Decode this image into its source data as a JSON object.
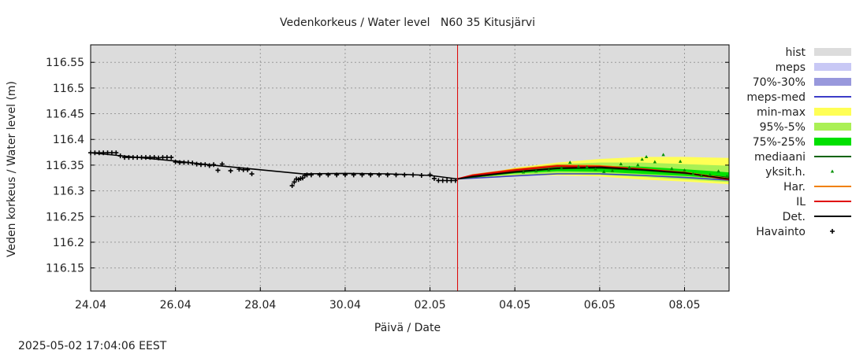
{
  "chart_data": {
    "type": "line",
    "title": "Vedenkorkeus / Water level   N60 35 Kitusjärvi",
    "xlabel": "Päivä / Date",
    "ylabel": "Veden korkeus / Water level (m)",
    "timestamp": "2025-05-02 17:04:06 EEST",
    "x_ticks": [
      {
        "label": "24.04",
        "day": 0
      },
      {
        "label": "26.04",
        "day": 2
      },
      {
        "label": "28.04",
        "day": 4
      },
      {
        "label": "30.04",
        "day": 6
      },
      {
        "label": "02.05",
        "day": 8
      },
      {
        "label": "04.05",
        "day": 10
      },
      {
        "label": "06.05",
        "day": 12
      },
      {
        "label": "08.05",
        "day": 14
      }
    ],
    "xlim_days": [
      0,
      15.05
    ],
    "ylim": [
      116.105,
      116.584
    ],
    "y_ticks": [
      116.15,
      116.2,
      116.25,
      116.3,
      116.35,
      116.4,
      116.45,
      116.5,
      116.55
    ],
    "y_tick_labels": [
      "116.15",
      "116.2",
      "116.25",
      "116.3",
      "116.35",
      "116.4",
      "116.45",
      "116.5",
      "116.55"
    ],
    "now_day": 8.65,
    "now_color": "#dd0000",
    "legend": [
      {
        "label": "hist",
        "kind": "band",
        "color": "#dcdcdc"
      },
      {
        "label": "meps",
        "kind": "band",
        "color": "#c8c8f5"
      },
      {
        "label": "70%-30%",
        "kind": "band",
        "color": "#9898dc"
      },
      {
        "label": "meps-med",
        "kind": "line",
        "color": "#3c3cc8"
      },
      {
        "label": "min-max",
        "kind": "band",
        "color": "#ffff55"
      },
      {
        "label": "95%-5%",
        "kind": "band",
        "color": "#aaf055"
      },
      {
        "label": "75%-25%",
        "kind": "band",
        "color": "#00e000"
      },
      {
        "label": "mediaani",
        "kind": "line",
        "color": "#006400"
      },
      {
        "label": "yksit.h.",
        "kind": "dot",
        "color": "#009000"
      },
      {
        "label": "Har.",
        "kind": "line",
        "color": "#f08000"
      },
      {
        "label": "IL",
        "kind": "line",
        "color": "#e00000"
      },
      {
        "label": "Det.",
        "kind": "line",
        "color": "#000000"
      },
      {
        "label": "Havainto",
        "kind": "cross",
        "color": "#000000"
      }
    ],
    "series": [
      {
        "name": "Det.",
        "color": "#000000",
        "x": [
          0,
          1,
          2,
          3,
          4,
          5,
          6,
          7,
          8,
          8.65,
          9,
          10,
          11,
          12,
          13,
          14,
          15.05
        ],
        "y": [
          116.374,
          116.366,
          116.358,
          116.349,
          116.341,
          116.333,
          116.334,
          116.333,
          116.33,
          116.323,
          116.328,
          116.337,
          116.344,
          116.346,
          116.341,
          116.335,
          116.323
        ]
      },
      {
        "name": "IL",
        "color": "#e00000",
        "x": [
          8.65,
          9,
          10,
          11,
          12,
          13,
          14,
          15.05
        ],
        "y": [
          116.323,
          116.33,
          116.34,
          116.348,
          116.347,
          116.342,
          116.335,
          116.322
        ]
      },
      {
        "name": "Har.",
        "color": "#f08000",
        "x": [
          8.65,
          9,
          10,
          11,
          12,
          13,
          14,
          15.05
        ],
        "y": [
          116.323,
          116.331,
          116.342,
          116.35,
          116.349,
          116.343,
          116.336,
          116.324
        ]
      },
      {
        "name": "mediaani",
        "color": "#006400",
        "x": [
          8.65,
          10,
          11,
          12,
          13,
          14,
          15.05
        ],
        "y": [
          116.323,
          116.336,
          116.343,
          116.344,
          116.34,
          116.334,
          116.326
        ]
      },
      {
        "name": "meps-med",
        "color": "#3c3cc8",
        "x": [
          8.65,
          10,
          11,
          12,
          13,
          14,
          15.05
        ],
        "y": [
          116.323,
          116.329,
          116.333,
          116.333,
          116.33,
          116.326,
          116.321
        ]
      }
    ],
    "bands": [
      {
        "name": "min-max",
        "color": "#ffff55",
        "x": [
          8.65,
          10,
          11,
          12,
          13,
          14,
          15.05
        ],
        "lower": [
          116.323,
          116.33,
          116.33,
          116.328,
          116.322,
          116.318,
          116.313
        ],
        "upper": [
          116.323,
          116.345,
          116.355,
          116.362,
          116.366,
          116.366,
          116.364
        ]
      },
      {
        "name": "95%-5%",
        "color": "#aaf055",
        "x": [
          8.65,
          10,
          11,
          12,
          13,
          14,
          15.05
        ],
        "lower": [
          116.323,
          116.331,
          116.333,
          116.331,
          116.327,
          116.322,
          116.317
        ],
        "upper": [
          116.323,
          116.343,
          116.352,
          116.355,
          116.355,
          116.352,
          116.349
        ]
      },
      {
        "name": "75%-25%",
        "color": "#00e000",
        "x": [
          8.65,
          10,
          11,
          12,
          13,
          14,
          15.05
        ],
        "lower": [
          116.323,
          116.334,
          116.338,
          116.337,
          116.333,
          116.329,
          116.323
        ],
        "upper": [
          116.323,
          116.34,
          116.348,
          116.349,
          116.347,
          116.342,
          116.336
        ]
      }
    ],
    "yksit": {
      "color": "#009000",
      "x": [
        10.2,
        10.5,
        10.8,
        11.1,
        11.3,
        11.5,
        11.7,
        11.9,
        12.1,
        12.3,
        12.5,
        12.7,
        12.9,
        13.0,
        13.1,
        13.3,
        13.5,
        13.7,
        13.9,
        14.0,
        14.2,
        14.4,
        14.6,
        14.8,
        15.0
      ],
      "y": [
        116.336,
        116.338,
        116.34,
        116.344,
        116.355,
        116.347,
        116.346,
        116.342,
        116.337,
        116.339,
        116.352,
        116.345,
        116.35,
        116.361,
        116.366,
        116.356,
        116.37,
        116.343,
        116.357,
        116.34,
        116.333,
        116.329,
        116.331,
        116.338,
        116.328
      ]
    },
    "havainto": {
      "x": [
        0,
        0.1,
        0.2,
        0.3,
        0.4,
        0.5,
        0.6,
        0.7,
        0.8,
        0.9,
        1.0,
        1.1,
        1.2,
        1.3,
        1.4,
        1.5,
        1.6,
        1.7,
        1.8,
        1.9,
        2.0,
        2.1,
        2.2,
        2.3,
        2.4,
        2.5,
        2.6,
        2.7,
        2.8,
        2.9,
        3.0,
        3.1,
        3.3,
        3.5,
        3.6,
        3.7,
        3.8,
        4.75,
        4.8,
        4.85,
        4.9,
        4.95,
        5.0,
        5.05,
        5.1,
        5.2,
        5.4,
        5.6,
        5.8,
        6.0,
        6.2,
        6.4,
        6.6,
        6.8,
        7.0,
        7.2,
        7.4,
        7.6,
        7.8,
        8.0,
        8.1,
        8.2,
        8.3,
        8.4,
        8.5,
        8.6
      ],
      "y": [
        116.374,
        116.374,
        116.374,
        116.374,
        116.374,
        116.374,
        116.374,
        116.368,
        116.365,
        116.365,
        116.365,
        116.365,
        116.365,
        116.365,
        116.365,
        116.365,
        116.364,
        116.365,
        116.365,
        116.365,
        116.356,
        116.355,
        116.355,
        116.355,
        116.354,
        116.352,
        116.351,
        116.351,
        116.349,
        116.351,
        116.34,
        116.352,
        116.339,
        116.342,
        116.341,
        116.341,
        116.333,
        116.31,
        116.317,
        116.323,
        116.322,
        116.324,
        116.325,
        116.33,
        116.331,
        116.331,
        116.331,
        116.331,
        116.331,
        116.331,
        116.331,
        116.331,
        116.331,
        116.331,
        116.331,
        116.331,
        116.331,
        116.331,
        116.33,
        116.331,
        116.324,
        116.32,
        116.32,
        116.32,
        116.32,
        116.32
      ]
    }
  }
}
